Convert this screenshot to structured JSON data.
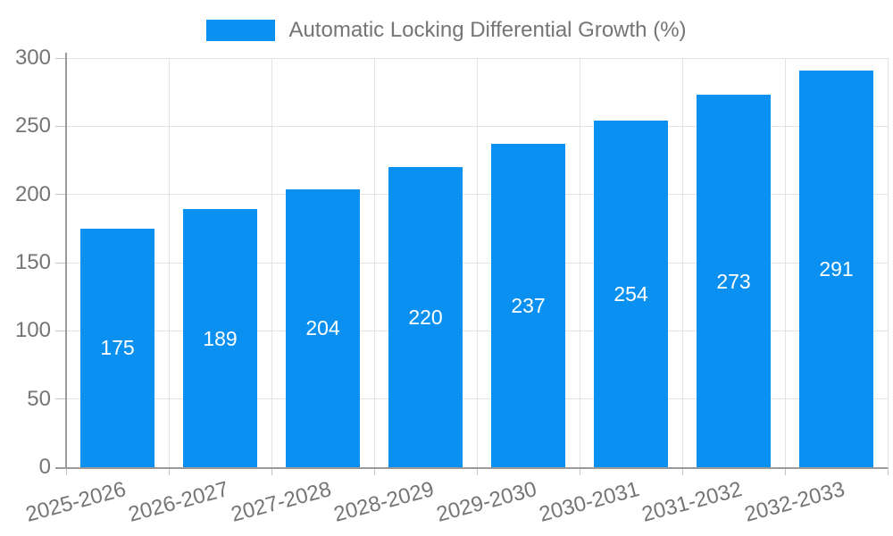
{
  "chart_data": {
    "type": "bar",
    "title": "",
    "xlabel": "",
    "ylabel": "",
    "categories": [
      "2025-2026",
      "2026-2027",
      "2027-2028",
      "2028-2029",
      "2029-2030",
      "2030-2031",
      "2031-2032",
      "2032-2033"
    ],
    "series": [
      {
        "name": "Automatic Locking Differential Growth (%)",
        "values": [
          175,
          189,
          204,
          220,
          237,
          254,
          273,
          291
        ]
      }
    ],
    "ylim": [
      0,
      300
    ],
    "ytick_step": 50,
    "yticks": [
      0,
      50,
      100,
      150,
      200,
      250,
      300
    ],
    "grid": "on",
    "legend_position": "top-center",
    "value_labels": "inside-center",
    "colors": {
      "bar": "#0a90f0",
      "value_label": "#ffffff",
      "axis_text": "#757575",
      "grid_line": "#e3e3e3",
      "axis_line": "#9a9a9a"
    }
  }
}
